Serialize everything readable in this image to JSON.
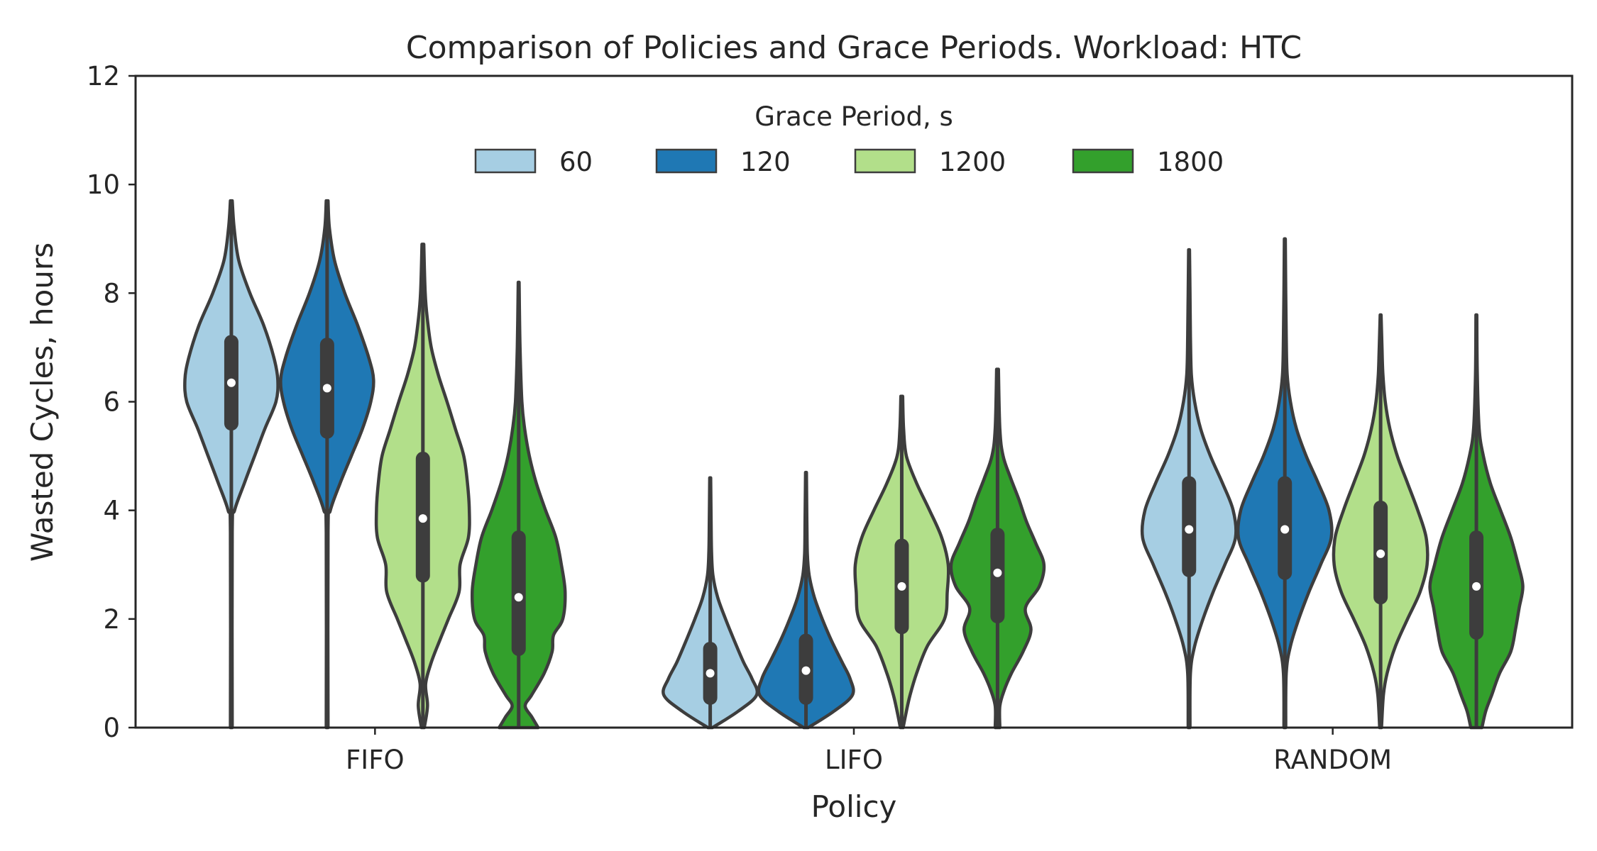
{
  "chart_data": {
    "type": "violin",
    "title": "Comparison of Policies and Grace Periods. Workload: HTC",
    "xlabel": "Policy",
    "ylabel": "Wasted Cycles, hours",
    "categories": [
      "FIFO",
      "LIFO",
      "RANDOM"
    ],
    "ylim": [
      0,
      12
    ],
    "yticks": [
      0,
      2,
      4,
      6,
      8,
      10,
      12
    ],
    "grid": false,
    "legend": {
      "title": "Grace Period, s",
      "placement": "upper center",
      "entries": [
        "60",
        "120",
        "1200",
        "1800"
      ]
    },
    "colors": [
      "#a6cee3",
      "#1f78b4",
      "#b2df8a",
      "#33a02c"
    ],
    "series": [
      {
        "name": "60",
        "violins": [
          {
            "category": "FIFO",
            "min": 0,
            "max": 9.7,
            "q1": 5.6,
            "median": 6.35,
            "q3": 7.1,
            "profile": [
              [
                0,
                0.02
              ],
              [
                3.6,
                0.02
              ],
              [
                4.0,
                0.07
              ],
              [
                4.5,
                0.28
              ],
              [
                5.0,
                0.5
              ],
              [
                5.5,
                0.72
              ],
              [
                6.0,
                0.96
              ],
              [
                6.4,
                1.0
              ],
              [
                6.8,
                0.92
              ],
              [
                7.4,
                0.7
              ],
              [
                8.0,
                0.4
              ],
              [
                8.6,
                0.16
              ],
              [
                9.2,
                0.06
              ],
              [
                9.7,
                0.02
              ]
            ]
          },
          {
            "category": "LIFO",
            "min": 0,
            "max": 4.6,
            "q1": 0.55,
            "median": 1.0,
            "q3": 1.45,
            "profile": [
              [
                0,
                0.05
              ],
              [
                0.3,
                0.6
              ],
              [
                0.6,
                1.0
              ],
              [
                0.9,
                0.9
              ],
              [
                1.2,
                0.72
              ],
              [
                1.6,
                0.52
              ],
              [
                2.0,
                0.33
              ],
              [
                2.4,
                0.16
              ],
              [
                2.8,
                0.06
              ],
              [
                3.2,
                0.03
              ],
              [
                3.8,
                0.02
              ],
              [
                4.6,
                0.01
              ]
            ]
          },
          {
            "category": "RANDOM",
            "min": 0,
            "max": 8.8,
            "q1": 2.9,
            "median": 3.65,
            "q3": 4.5,
            "profile": [
              [
                0,
                0.02
              ],
              [
                1.0,
                0.03
              ],
              [
                1.5,
                0.12
              ],
              [
                2.0,
                0.3
              ],
              [
                2.5,
                0.52
              ],
              [
                3.0,
                0.77
              ],
              [
                3.5,
                1.0
              ],
              [
                4.0,
                0.95
              ],
              [
                4.5,
                0.72
              ],
              [
                5.0,
                0.46
              ],
              [
                5.5,
                0.25
              ],
              [
                6.0,
                0.12
              ],
              [
                6.5,
                0.05
              ],
              [
                7.2,
                0.03
              ],
              [
                8.0,
                0.02
              ],
              [
                8.8,
                0.01
              ]
            ]
          }
        ]
      },
      {
        "name": "120",
        "violins": [
          {
            "category": "FIFO",
            "min": 0,
            "max": 9.7,
            "q1": 5.45,
            "median": 6.25,
            "q3": 7.05,
            "profile": [
              [
                0,
                0.02
              ],
              [
                3.6,
                0.02
              ],
              [
                4.0,
                0.07
              ],
              [
                4.5,
                0.28
              ],
              [
                5.0,
                0.52
              ],
              [
                5.5,
                0.76
              ],
              [
                6.0,
                0.94
              ],
              [
                6.4,
                1.0
              ],
              [
                6.8,
                0.9
              ],
              [
                7.4,
                0.66
              ],
              [
                8.0,
                0.38
              ],
              [
                8.6,
                0.16
              ],
              [
                9.2,
                0.05
              ],
              [
                9.7,
                0.02
              ]
            ]
          },
          {
            "category": "LIFO",
            "min": 0,
            "max": 4.7,
            "q1": 0.55,
            "median": 1.05,
            "q3": 1.6,
            "profile": [
              [
                0,
                0.05
              ],
              [
                0.3,
                0.6
              ],
              [
                0.6,
                1.0
              ],
              [
                0.9,
                0.95
              ],
              [
                1.2,
                0.78
              ],
              [
                1.6,
                0.55
              ],
              [
                2.0,
                0.35
              ],
              [
                2.4,
                0.18
              ],
              [
                2.8,
                0.07
              ],
              [
                3.2,
                0.03
              ],
              [
                3.8,
                0.02
              ],
              [
                4.7,
                0.01
              ]
            ]
          },
          {
            "category": "RANDOM",
            "min": 0,
            "max": 9.0,
            "q1": 2.85,
            "median": 3.65,
            "q3": 4.5,
            "profile": [
              [
                0,
                0.02
              ],
              [
                1.0,
                0.03
              ],
              [
                1.5,
                0.12
              ],
              [
                2.0,
                0.3
              ],
              [
                2.5,
                0.52
              ],
              [
                3.0,
                0.77
              ],
              [
                3.5,
                1.0
              ],
              [
                4.0,
                0.95
              ],
              [
                4.5,
                0.72
              ],
              [
                5.0,
                0.46
              ],
              [
                5.5,
                0.25
              ],
              [
                6.0,
                0.12
              ],
              [
                6.5,
                0.05
              ],
              [
                7.2,
                0.03
              ],
              [
                8.0,
                0.02
              ],
              [
                9.0,
                0.01
              ]
            ]
          }
        ]
      },
      {
        "name": "1200",
        "violins": [
          {
            "category": "FIFO",
            "min": 0,
            "max": 8.9,
            "q1": 2.8,
            "median": 3.85,
            "q3": 4.95,
            "profile": [
              [
                0,
                0.03
              ],
              [
                0.4,
                0.1
              ],
              [
                0.8,
                0.06
              ],
              [
                1.2,
                0.18
              ],
              [
                1.6,
                0.36
              ],
              [
                2.0,
                0.55
              ],
              [
                2.5,
                0.78
              ],
              [
                3.0,
                0.8
              ],
              [
                3.5,
                0.98
              ],
              [
                4.0,
                1.0
              ],
              [
                4.5,
                0.96
              ],
              [
                5.0,
                0.88
              ],
              [
                5.5,
                0.7
              ],
              [
                6.0,
                0.52
              ],
              [
                6.5,
                0.33
              ],
              [
                7.0,
                0.18
              ],
              [
                7.5,
                0.1
              ],
              [
                8.0,
                0.05
              ],
              [
                8.9,
                0.02
              ]
            ]
          },
          {
            "category": "LIFO",
            "min": 0,
            "max": 6.1,
            "q1": 1.85,
            "median": 2.6,
            "q3": 3.35,
            "profile": [
              [
                0,
                0.03
              ],
              [
                0.3,
                0.1
              ],
              [
                0.6,
                0.18
              ],
              [
                1.0,
                0.32
              ],
              [
                1.5,
                0.55
              ],
              [
                2.0,
                0.92
              ],
              [
                2.5,
                0.98
              ],
              [
                3.0,
                1.0
              ],
              [
                3.5,
                0.86
              ],
              [
                4.0,
                0.6
              ],
              [
                4.5,
                0.32
              ],
              [
                5.0,
                0.1
              ],
              [
                5.5,
                0.04
              ],
              [
                6.1,
                0.02
              ]
            ]
          },
          {
            "category": "RANDOM",
            "min": 0,
            "max": 7.6,
            "q1": 2.4,
            "median": 3.2,
            "q3": 4.05,
            "profile": [
              [
                0,
                0.02
              ],
              [
                0.6,
                0.06
              ],
              [
                1.0,
                0.14
              ],
              [
                1.5,
                0.32
              ],
              [
                2.0,
                0.58
              ],
              [
                2.5,
                0.85
              ],
              [
                3.0,
                1.0
              ],
              [
                3.5,
                0.98
              ],
              [
                4.0,
                0.8
              ],
              [
                4.5,
                0.58
              ],
              [
                5.0,
                0.36
              ],
              [
                5.5,
                0.2
              ],
              [
                6.0,
                0.1
              ],
              [
                6.5,
                0.05
              ],
              [
                7.0,
                0.03
              ],
              [
                7.6,
                0.01
              ]
            ]
          }
        ]
      },
      {
        "name": "1800",
        "violins": [
          {
            "category": "FIFO",
            "min": 0,
            "max": 8.2,
            "q1": 1.45,
            "median": 2.4,
            "q3": 3.5,
            "profile": [
              [
                0,
                0.42
              ],
              [
                0.2,
                0.28
              ],
              [
                0.4,
                0.14
              ],
              [
                0.6,
                0.28
              ],
              [
                1.0,
                0.55
              ],
              [
                1.4,
                0.72
              ],
              [
                1.7,
                0.75
              ],
              [
                2.0,
                0.95
              ],
              [
                2.5,
                1.0
              ],
              [
                3.0,
                0.92
              ],
              [
                3.5,
                0.8
              ],
              [
                4.0,
                0.58
              ],
              [
                4.5,
                0.38
              ],
              [
                5.0,
                0.23
              ],
              [
                5.5,
                0.13
              ],
              [
                6.0,
                0.07
              ],
              [
                7.0,
                0.03
              ],
              [
                8.2,
                0.01
              ]
            ]
          },
          {
            "category": "LIFO",
            "min": 0,
            "max": 6.6,
            "q1": 2.05,
            "median": 2.85,
            "q3": 3.55,
            "profile": [
              [
                0,
                0.05
              ],
              [
                0.4,
                0.05
              ],
              [
                0.7,
                0.15
              ],
              [
                1.0,
                0.3
              ],
              [
                1.4,
                0.55
              ],
              [
                1.8,
                0.72
              ],
              [
                2.2,
                0.6
              ],
              [
                2.6,
                0.9
              ],
              [
                3.0,
                1.0
              ],
              [
                3.4,
                0.82
              ],
              [
                3.8,
                0.62
              ],
              [
                4.2,
                0.46
              ],
              [
                4.6,
                0.28
              ],
              [
                5.0,
                0.12
              ],
              [
                5.5,
                0.05
              ],
              [
                6.6,
                0.02
              ]
            ]
          },
          {
            "category": "RANDOM",
            "min": 0,
            "max": 7.6,
            "q1": 1.75,
            "median": 2.6,
            "q3": 3.5,
            "profile": [
              [
                0,
                0.12
              ],
              [
                0.3,
                0.2
              ],
              [
                0.6,
                0.33
              ],
              [
                1.0,
                0.5
              ],
              [
                1.4,
                0.74
              ],
              [
                1.8,
                0.84
              ],
              [
                2.2,
                0.92
              ],
              [
                2.6,
                1.0
              ],
              [
                3.0,
                0.9
              ],
              [
                3.5,
                0.74
              ],
              [
                4.0,
                0.52
              ],
              [
                4.5,
                0.3
              ],
              [
                5.0,
                0.15
              ],
              [
                5.5,
                0.06
              ],
              [
                6.5,
                0.02
              ],
              [
                7.6,
                0.01
              ]
            ]
          }
        ]
      }
    ]
  }
}
